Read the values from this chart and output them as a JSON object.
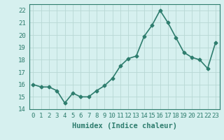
{
  "x": [
    0,
    1,
    2,
    3,
    4,
    5,
    6,
    7,
    8,
    9,
    10,
    11,
    12,
    13,
    14,
    15,
    16,
    17,
    18,
    19,
    20,
    21,
    22,
    23
  ],
  "y": [
    16.0,
    15.8,
    15.8,
    15.5,
    14.5,
    15.3,
    15.0,
    15.0,
    15.5,
    15.9,
    16.5,
    17.5,
    18.1,
    18.3,
    19.9,
    20.8,
    22.0,
    21.0,
    19.8,
    18.6,
    18.2,
    18.0,
    17.3,
    19.4
  ],
  "line_color": "#2e7d6e",
  "marker": "D",
  "marker_size": 2.5,
  "bg_color": "#d6f0ef",
  "grid_color": "#b8d8d4",
  "xlabel": "Humidex (Indice chaleur)",
  "xlim": [
    -0.5,
    23.5
  ],
  "ylim": [
    14,
    22.5
  ],
  "yticks": [
    14,
    15,
    16,
    17,
    18,
    19,
    20,
    21,
    22
  ],
  "xticks": [
    0,
    1,
    2,
    3,
    4,
    5,
    6,
    7,
    8,
    9,
    10,
    11,
    12,
    13,
    14,
    15,
    16,
    17,
    18,
    19,
    20,
    21,
    22,
    23
  ],
  "xtick_labels": [
    "0",
    "1",
    "2",
    "3",
    "4",
    "5",
    "6",
    "7",
    "8",
    "9",
    "10",
    "11",
    "12",
    "13",
    "14",
    "15",
    "16",
    "17",
    "18",
    "19",
    "20",
    "21",
    "22",
    "23"
  ],
  "xlabel_fontsize": 7.5,
  "tick_fontsize": 6.5,
  "linewidth": 1.2,
  "spine_color": "#2e7d6e"
}
